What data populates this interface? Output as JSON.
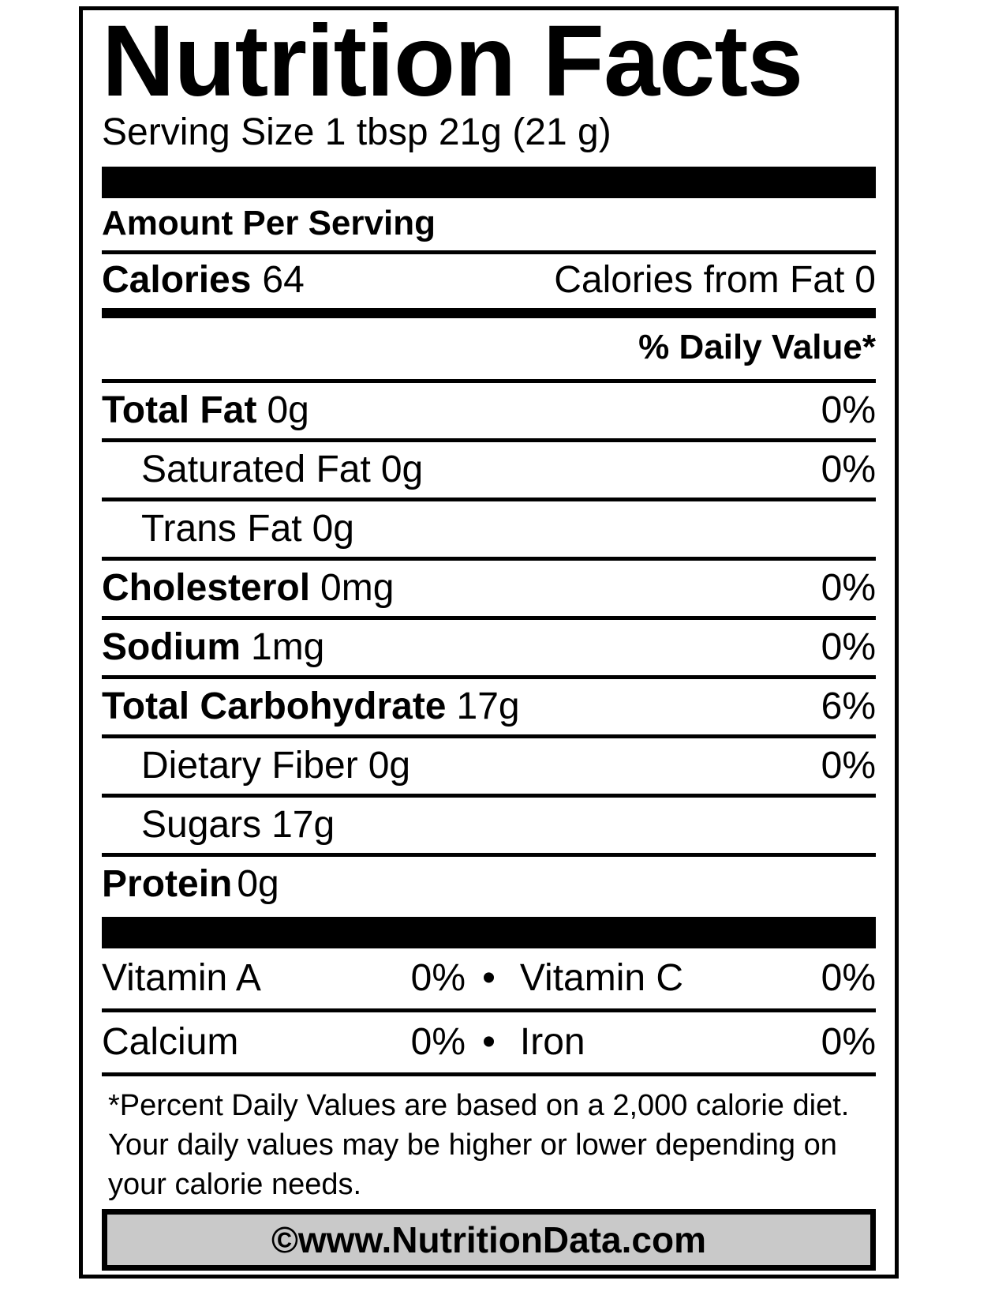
{
  "label": {
    "title": "Nutrition Facts",
    "serving_size": "Serving Size 1 tbsp 21g (21 g)",
    "amount_per_serving": "Amount Per Serving",
    "calories": {
      "label": "Calories",
      "value": "64",
      "from_fat_label": "Calories from Fat",
      "from_fat_value": "0"
    },
    "daily_value_header": "% Daily Value*",
    "nutrients": [
      {
        "name": "Total Fat",
        "amount": "0g",
        "dv": "0%"
      },
      {
        "name": "Saturated Fat",
        "amount": "0g",
        "dv": "0%"
      },
      {
        "name": "Trans Fat",
        "amount": "0g",
        "dv": ""
      },
      {
        "name": "Cholesterol",
        "amount": "0mg",
        "dv": "0%"
      },
      {
        "name": "Sodium",
        "amount": "1mg",
        "dv": "0%"
      },
      {
        "name": "Total Carbohydrate",
        "amount": "17g",
        "dv": "6%"
      },
      {
        "name": "Dietary Fiber",
        "amount": "0g",
        "dv": "0%"
      },
      {
        "name": "Sugars",
        "amount": "17g",
        "dv": ""
      },
      {
        "name": "Protein",
        "amount": "0g",
        "dv": ""
      }
    ],
    "separator_bullet": "•",
    "micronutrients": [
      {
        "name1": "Vitamin A",
        "value1": "0%",
        "name2": "Vitamin C",
        "value2": "0%"
      },
      {
        "name1": "Calcium",
        "value1": "0%",
        "name2": "Iron",
        "value2": "0%"
      }
    ],
    "footnote_lines": [
      "*Percent Daily Values are based on a 2,000 calorie diet.",
      "Your daily values may be higher or lower depending on",
      "your calorie needs."
    ],
    "footer_site": "©www.NutritionData.com",
    "colors": {
      "text": "#000000",
      "background": "#ffffff",
      "footer_box_fill": "#c9c9c9"
    }
  }
}
